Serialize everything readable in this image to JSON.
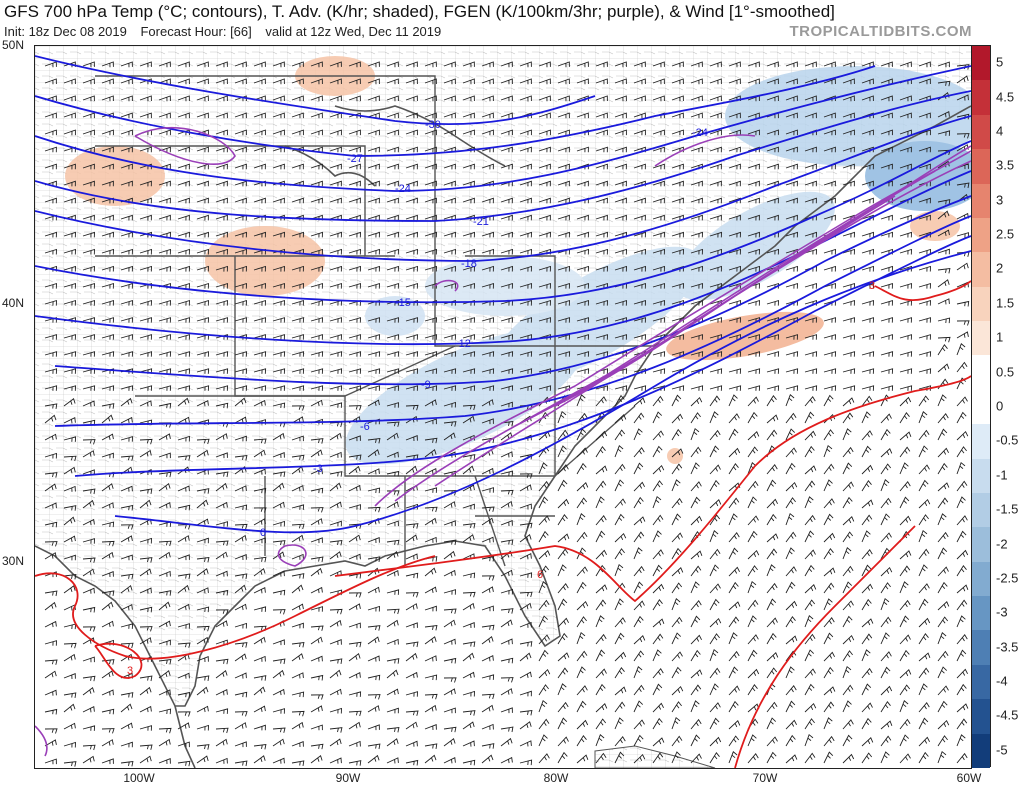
{
  "header": {
    "title": "GFS 700 hPa Temp (°C; contours), T. Adv. (K/hr; shaded), FGEN (K/100km/3hr; purple), & Wind [1°-smoothed]",
    "init": "Init: 18z Dec 08 2019",
    "forecast_hour": "Forecast Hour: [66]",
    "valid": "valid at 12z Wed, Dec 11 2019",
    "brand": "TROPICALTIDBITS.COM"
  },
  "axes": {
    "lat_labels": [
      "50N",
      "40N",
      "30N"
    ],
    "lon_labels": [
      "100W",
      "90W",
      "80W",
      "70W",
      "60W"
    ]
  },
  "contour_labels": {
    "cold": [
      "-30",
      "-27",
      "-24",
      "-21",
      "-18",
      "-15",
      "-12",
      "-9",
      "-6",
      "-3",
      "0",
      "-24"
    ],
    "warm": [
      "3",
      "6",
      "3"
    ]
  },
  "colorbar": {
    "labels": [
      "5",
      "4.5",
      "4",
      "3.5",
      "3",
      "2.5",
      "2",
      "1.5",
      "1",
      "0.5",
      "0",
      "-0.5",
      "-1",
      "-1.5",
      "-2",
      "-2.5",
      "-3",
      "-3.5",
      "-4",
      "-4.5",
      "-5"
    ],
    "colors": [
      "#b2182b",
      "#c43038",
      "#d04a48",
      "#dc6658",
      "#e6846e",
      "#eea286",
      "#f4bda2",
      "#f8d3bd",
      "#fbe6d8",
      "#ffffff",
      "#ffffff",
      "#deebf7",
      "#c8dcee",
      "#b2cde5",
      "#9cbedb",
      "#82abd0",
      "#6796c3",
      "#4e7fb4",
      "#3868a3",
      "#235290",
      "#123d7a"
    ]
  },
  "colors": {
    "cold_contour": "#1a1adc",
    "warm_contour": "#e01c1c",
    "fgen": "#9a3fb8",
    "state_border": "#555555",
    "county_border": "#b4b4b4",
    "warm_advection": "#f3b08f",
    "cold_advection": "#9cc3e4"
  }
}
